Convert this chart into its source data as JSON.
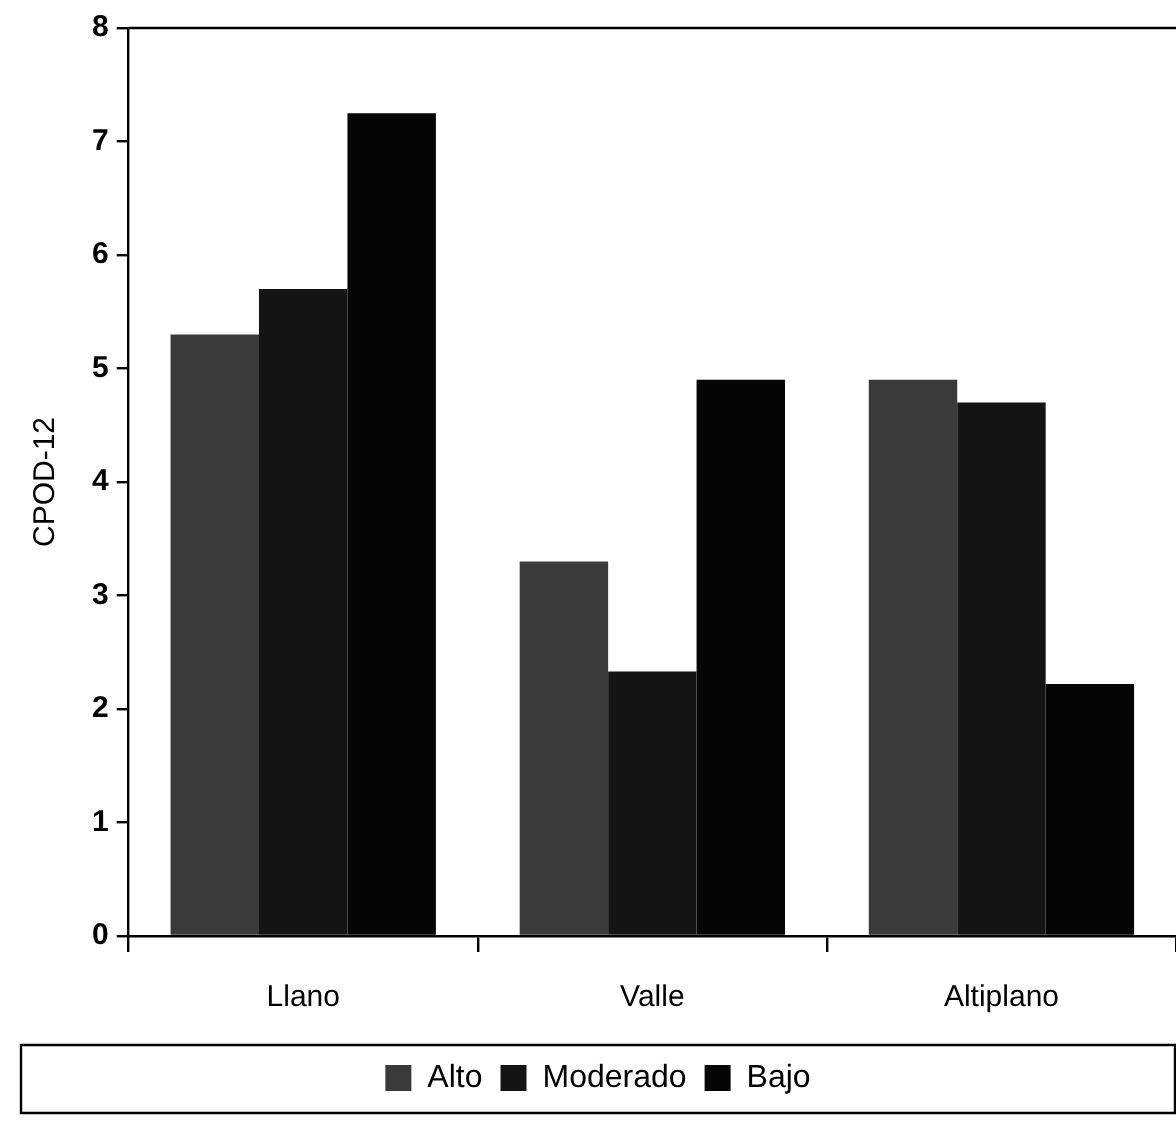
{
  "chart_data": {
    "type": "bar",
    "ylabel": "CPOD-12",
    "categories": [
      "Llano",
      "Valle",
      "Altiplano"
    ],
    "series": [
      {
        "name": "Alto",
        "color": "#3a3a3a",
        "values": [
          5.3,
          3.3,
          4.9
        ]
      },
      {
        "name": "Moderado",
        "color": "#141414",
        "values": [
          5.7,
          2.33,
          4.7
        ]
      },
      {
        "name": "Bajo",
        "color": "#050505",
        "values": [
          7.25,
          4.9,
          2.22
        ]
      }
    ],
    "ylim": [
      0,
      8
    ],
    "yticks": [
      0,
      1,
      2,
      3,
      4,
      5,
      6,
      7,
      8
    ],
    "grid": false,
    "legend": "bottom"
  }
}
